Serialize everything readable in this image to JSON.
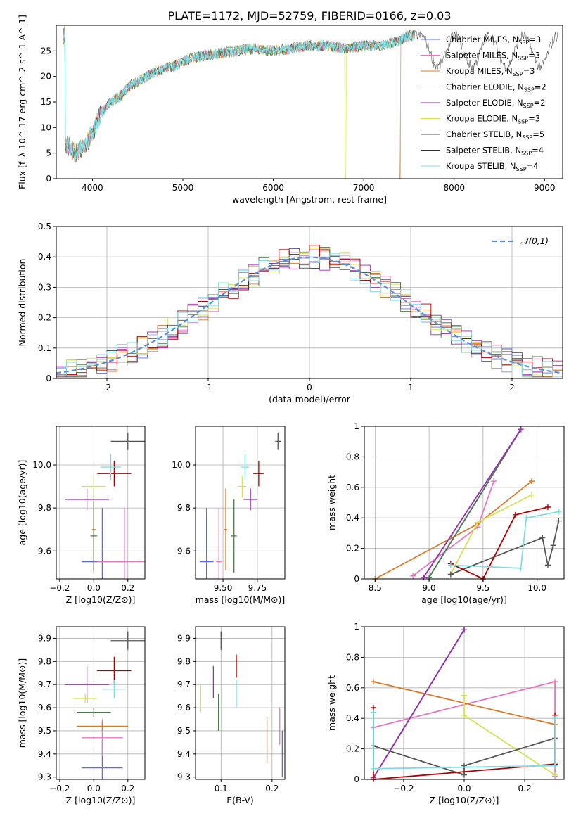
{
  "figure": {
    "title": "PLATE=1172, MJD=52759, FIBERID=0166, z=0.03"
  },
  "series_styles": [
    {
      "name": "Chabrier MILES",
      "nssp": "3",
      "color": "#5a6ee0"
    },
    {
      "name": "Salpeter MILES",
      "nssp": "3",
      "color": "#e377c2"
    },
    {
      "name": "Kroupa MILES",
      "nssp": "3",
      "color": "#d97a2a"
    },
    {
      "name": "Chabrier ELODIE",
      "nssp": "2",
      "color": "#4c7a4c"
    },
    {
      "name": "Salpeter ELODIE",
      "nssp": "2",
      "color": "#9b2fae"
    },
    {
      "name": "Kroupa ELODIE",
      "nssp": "3",
      "color": "#d4e157"
    },
    {
      "name": "Chabrier STELIB",
      "nssp": "5",
      "color": "#555555"
    },
    {
      "name": "Salpeter STELIB",
      "nssp": "4",
      "color": "#b00000"
    },
    {
      "name": "Kroupa STELIB",
      "nssp": "4",
      "color": "#7fdde2"
    }
  ],
  "chart_data": [
    {
      "id": "spectrum",
      "type": "line",
      "title": "PLATE=1172, MJD=52759, FIBERID=0166, z=0.03",
      "xlabel": "wavelength [Angstrom, rest frame]",
      "ylabel": "Flux [f_λ 10^-17 erg cm^-2 s^-1 A^-1]",
      "xlim": [
        3600,
        9200
      ],
      "ylim": [
        0,
        30
      ],
      "xticks": [
        4000,
        5000,
        6000,
        7000,
        8000,
        9000
      ],
      "yticks": [
        0,
        5,
        10,
        15,
        20,
        25
      ],
      "legend": "top-right",
      "x": [
        3700,
        3800,
        3900,
        4000,
        4100,
        4200,
        4300,
        4400,
        4500,
        4600,
        4700,
        4800,
        4900,
        5000,
        5200,
        5400,
        5600,
        5800,
        6000,
        6200,
        6400,
        6600,
        6800,
        7000,
        7200,
        7400,
        7500
      ],
      "y": [
        7,
        5,
        6,
        9,
        13,
        15,
        16,
        18,
        19,
        20,
        21,
        21.5,
        22,
        23,
        24,
        24.5,
        25,
        25.5,
        25,
        25.5,
        26,
        26,
        25.5,
        26,
        26,
        27,
        28
      ],
      "cutoffs": [
        {
          "series": "Kroupa ELODIE",
          "x": 6800
        },
        {
          "series": "Kroupa MILES",
          "x": 7400
        }
      ]
    },
    {
      "id": "residuals",
      "type": "bar",
      "xlabel": "(data-model)/error",
      "ylabel": "Normed distribution",
      "xlim": [
        -2.5,
        2.5
      ],
      "ylim": [
        0,
        0.5
      ],
      "xticks": [
        -2,
        -1,
        0,
        1,
        2
      ],
      "yticks": [
        0.0,
        0.1,
        0.2,
        0.3,
        0.4,
        0.5
      ],
      "legend": "top-right",
      "reference_label": "𝒩(0,1)",
      "reference_color": "#5b8fd4",
      "bin_width": 0.1,
      "bin_start": -2.5
    },
    {
      "id": "age_vs_Z",
      "type": "scatter",
      "xlabel": "Z [log10(Z/Z⊙)]",
      "ylabel": "age [log10(age/yr)]",
      "xlim": [
        -0.22,
        0.3
      ],
      "ylim": [
        9.47,
        10.18
      ],
      "xticks": [
        -0.2,
        0.0,
        0.2
      ],
      "xtick_labels": [
        "−0.2",
        "0.0",
        "0.2"
      ],
      "yticks": [
        9.6,
        9.8,
        10.0
      ],
      "yticklabels": [
        "9.6",
        "9.8",
        "10.0"
      ],
      "points": [
        {
          "series": "Chabrier STELIB",
          "x": 0.2,
          "xerr": 0.1,
          "y": 10.11,
          "yerr": 0.04
        },
        {
          "series": "Salpeter STELIB",
          "x": 0.12,
          "xerr": 0.1,
          "y": 9.96,
          "yerr": 0.06
        },
        {
          "series": "Kroupa STELIB",
          "x": 0.1,
          "xerr": 0.06,
          "y": 9.99,
          "yerr": 0.06
        },
        {
          "series": "Chabrier MILES",
          "x": 0.05,
          "xerr": 0.12,
          "y": 9.55,
          "yerr": 0.25
        },
        {
          "series": "Salpeter MILES",
          "x": 0.18,
          "xerr": 0.16,
          "y": 9.55,
          "yerr": 0.25
        },
        {
          "series": "Kroupa MILES",
          "x": 0.0,
          "xerr": 0.01,
          "y": 9.7,
          "yerr": 0.19
        },
        {
          "series": "Chabrier ELODIE",
          "x": 0.0,
          "xerr": 0.02,
          "y": 9.67,
          "yerr": 0.17
        },
        {
          "series": "Salpeter ELODIE",
          "x": -0.04,
          "xerr": 0.13,
          "y": 9.84,
          "yerr": 0.05
        },
        {
          "series": "Kroupa ELODIE",
          "x": 0.0,
          "xerr": 0.07,
          "y": 9.9,
          "yerr": 0.05
        }
      ]
    },
    {
      "id": "age_vs_mass",
      "type": "scatter",
      "xlabel": "mass [log10(M/M⊙)]",
      "ylabel": "",
      "xlim": [
        9.3,
        9.95
      ],
      "ylim": [
        9.47,
        10.18
      ],
      "xticks": [
        9.5,
        9.75
      ],
      "xtick_labels": [
        "9.50",
        "9.75"
      ],
      "yticks": [
        9.6,
        9.8,
        10.0
      ],
      "yticklabels": [
        "9.6",
        "9.8",
        "10.0"
      ],
      "points": [
        {
          "series": "Chabrier STELIB",
          "x": 9.9,
          "xerr": 0.02,
          "y": 10.11,
          "yerr": 0.04
        },
        {
          "series": "Salpeter STELIB",
          "x": 9.76,
          "xerr": 0.04,
          "y": 9.96,
          "yerr": 0.06
        },
        {
          "series": "Kroupa STELIB",
          "x": 9.66,
          "xerr": 0.03,
          "y": 9.99,
          "yerr": 0.06
        },
        {
          "series": "Chabrier MILES",
          "x": 9.38,
          "xerr": 0.05,
          "y": 9.55,
          "yerr": 0.25
        },
        {
          "series": "Salpeter MILES",
          "x": 9.47,
          "xerr": 0.02,
          "y": 9.55,
          "yerr": 0.25
        },
        {
          "series": "Kroupa MILES",
          "x": 9.52,
          "xerr": 0.01,
          "y": 9.7,
          "yerr": 0.19
        },
        {
          "series": "Chabrier ELODIE",
          "x": 9.58,
          "xerr": 0.02,
          "y": 9.67,
          "yerr": 0.17
        },
        {
          "series": "Salpeter ELODIE",
          "x": 9.7,
          "xerr": 0.05,
          "y": 9.84,
          "yerr": 0.05
        },
        {
          "series": "Kroupa ELODIE",
          "x": 9.64,
          "xerr": 0.03,
          "y": 9.9,
          "yerr": 0.05
        }
      ]
    },
    {
      "id": "weight_vs_age",
      "type": "line",
      "xlabel": "age [log10(age/yr)]",
      "ylabel": "mass weight",
      "xlim": [
        8.4,
        10.25
      ],
      "ylim": [
        0,
        1
      ],
      "xticks": [
        8.5,
        9.0,
        9.5,
        10.0
      ],
      "xtick_labels": [
        "8.5",
        "9.0",
        "9.5",
        "10.0"
      ],
      "yticks": [
        0.0,
        0.2,
        0.4,
        0.6,
        0.8,
        1.0
      ],
      "lines": [
        {
          "series": "Chabrier MILES",
          "x": [
            9.0,
            9.85
          ],
          "y": [
            0.01,
            0.98
          ]
        },
        {
          "series": "Salpeter MILES",
          "x": [
            8.85,
            9.45,
            9.6
          ],
          "y": [
            0.02,
            0.34,
            0.64
          ]
        },
        {
          "series": "Kroupa MILES",
          "x": [
            8.5,
            9.45,
            9.95
          ],
          "y": [
            0.0,
            0.36,
            0.64
          ]
        },
        {
          "series": "Chabrier ELODIE",
          "x": [
            9.0,
            9.85
          ],
          "y": [
            0.01,
            0.98
          ]
        },
        {
          "series": "Salpeter ELODIE",
          "x": [
            8.95,
            9.85
          ],
          "y": [
            0.01,
            0.98
          ]
        },
        {
          "series": "Kroupa ELODIE",
          "x": [
            9.2,
            9.45,
            9.95
          ],
          "y": [
            0.03,
            0.37,
            0.55
          ]
        },
        {
          "series": "Chabrier STELIB",
          "x": [
            9.2,
            10.05,
            10.1,
            10.15,
            10.2
          ],
          "y": [
            0.03,
            0.27,
            0.09,
            0.22,
            0.38
          ]
        },
        {
          "series": "Salpeter STELIB",
          "x": [
            9.2,
            9.5,
            9.8,
            10.1
          ],
          "y": [
            0.1,
            0.0,
            0.42,
            0.47
          ]
        },
        {
          "series": "Kroupa STELIB",
          "x": [
            9.2,
            9.85,
            9.9,
            10.2
          ],
          "y": [
            0.09,
            0.07,
            0.4,
            0.44
          ]
        }
      ]
    },
    {
      "id": "mass_vs_Z",
      "type": "scatter",
      "xlabel": "Z [log10(Z/Z⊙)]",
      "ylabel": "mass [log10(M/M⊙)]",
      "xlim": [
        -0.22,
        0.3
      ],
      "ylim": [
        9.29,
        9.95
      ],
      "xticks": [
        -0.2,
        0.0,
        0.2
      ],
      "xtick_labels": [
        "−0.2",
        "0.0",
        "0.2"
      ],
      "yticks": [
        9.3,
        9.4,
        9.5,
        9.6,
        9.7,
        9.8,
        9.9
      ],
      "points": [
        {
          "series": "Chabrier STELIB",
          "x": 0.2,
          "xerr": 0.1,
          "y": 9.89,
          "yerr": 0.04
        },
        {
          "series": "Salpeter STELIB",
          "x": 0.12,
          "xerr": 0.1,
          "y": 9.76,
          "yerr": 0.06
        },
        {
          "series": "Kroupa STELIB",
          "x": 0.12,
          "xerr": 0.07,
          "y": 9.68,
          "yerr": 0.04
        },
        {
          "series": "Chabrier MILES",
          "x": 0.05,
          "xerr": 0.12,
          "y": 9.34,
          "yerr": 0.12
        },
        {
          "series": "Salpeter MILES",
          "x": 0.05,
          "xerr": 0.12,
          "y": 9.47,
          "yerr": 0.08
        },
        {
          "series": "Kroupa MILES",
          "x": 0.05,
          "xerr": 0.15,
          "y": 9.52,
          "yerr": 0.02
        },
        {
          "series": "Chabrier ELODIE",
          "x": 0.0,
          "xerr": 0.1,
          "y": 9.58,
          "yerr": 0.02
        },
        {
          "series": "Salpeter ELODIE",
          "x": -0.04,
          "xerr": 0.13,
          "y": 9.7,
          "yerr": 0.08
        },
        {
          "series": "Kroupa ELODIE",
          "x": -0.05,
          "xerr": 0.07,
          "y": 9.64,
          "yerr": 0.02
        }
      ]
    },
    {
      "id": "mass_vs_ebv",
      "type": "scatter",
      "xlabel": "E(B-V)",
      "ylabel": "",
      "xlim": [
        0.05,
        0.225
      ],
      "ylim": [
        9.29,
        9.95
      ],
      "xticks": [
        0.1,
        0.2
      ],
      "xtick_labels": [
        "0.1",
        "0.2"
      ],
      "yticks": [
        9.3,
        9.4,
        9.5,
        9.6,
        9.7,
        9.8,
        9.9
      ],
      "points": [
        {
          "series": "Chabrier STELIB",
          "x": 0.1,
          "xerr": 0.0,
          "y": 9.89,
          "yerr": 0.04
        },
        {
          "series": "Salpeter STELIB",
          "x": 0.13,
          "xerr": 0.0,
          "y": 9.78,
          "yerr": 0.05
        },
        {
          "series": "Kroupa STELIB",
          "x": 0.13,
          "xerr": 0.0,
          "y": 9.66,
          "yerr": 0.06
        },
        {
          "series": "Chabrier MILES",
          "x": 0.22,
          "xerr": 0.0,
          "y": 9.4,
          "yerr": 0.1
        },
        {
          "series": "Salpeter MILES",
          "x": 0.215,
          "xerr": 0.0,
          "y": 9.52,
          "yerr": 0.08
        },
        {
          "series": "Kroupa MILES",
          "x": 0.19,
          "xerr": 0.0,
          "y": 9.46,
          "yerr": 0.1
        },
        {
          "series": "Chabrier ELODIE",
          "x": 0.095,
          "xerr": 0.0,
          "y": 9.58,
          "yerr": 0.08
        },
        {
          "series": "Salpeter ELODIE",
          "x": 0.085,
          "xerr": 0.0,
          "y": 9.71,
          "yerr": 0.07
        },
        {
          "series": "Kroupa ELODIE",
          "x": 0.06,
          "xerr": 0.0,
          "y": 9.64,
          "yerr": 0.06
        }
      ]
    },
    {
      "id": "weight_vs_Z",
      "type": "line",
      "xlabel": "Z [log10(Z/Z⊙)]",
      "ylabel": "mass weight",
      "xlim": [
        -0.33,
        0.33
      ],
      "ylim": [
        0,
        1
      ],
      "xticks": [
        -0.2,
        0.0,
        0.2
      ],
      "xtick_labels": [
        "−0.2",
        "0.0",
        "0.2"
      ],
      "yticks": [
        0.0,
        0.2,
        0.4,
        0.6,
        0.8,
        1.0
      ],
      "lines": [
        {
          "series": "Chabrier MILES",
          "x": [
            -0.3,
            0.0
          ],
          "y": [
            0.01,
            0.98
          ]
        },
        {
          "series": "Salpeter MILES",
          "x": [
            -0.3,
            0.3,
            0.3
          ],
          "y": [
            0.34,
            0.64,
            0.02
          ]
        },
        {
          "series": "Kroupa MILES",
          "x": [
            -0.3,
            0.3
          ],
          "y": [
            0.64,
            0.36
          ]
        },
        {
          "series": "Chabrier ELODIE",
          "x": [
            -0.3,
            0.0
          ],
          "y": [
            0.01,
            0.98
          ]
        },
        {
          "series": "Salpeter ELODIE",
          "x": [
            -0.3,
            0.0
          ],
          "y": [
            0.01,
            0.98
          ]
        },
        {
          "series": "Kroupa ELODIE",
          "x": [
            0.0,
            0.0,
            0.3
          ],
          "y": [
            0.55,
            0.42,
            0.03
          ]
        },
        {
          "series": "Chabrier STELIB",
          "x": [
            -0.3,
            0.0,
            0.0,
            0.3
          ],
          "y": [
            0.22,
            0.03,
            0.09,
            0.27
          ]
        },
        {
          "series": "Salpeter STELIB",
          "x": [
            -0.3,
            -0.3,
            0.3,
            0.3
          ],
          "y": [
            0.47,
            0.0,
            0.1,
            0.42
          ]
        },
        {
          "series": "Kroupa STELIB",
          "x": [
            -0.3,
            -0.3,
            0.3,
            0.3
          ],
          "y": [
            0.44,
            0.07,
            0.09,
            0.4
          ]
        }
      ]
    }
  ]
}
